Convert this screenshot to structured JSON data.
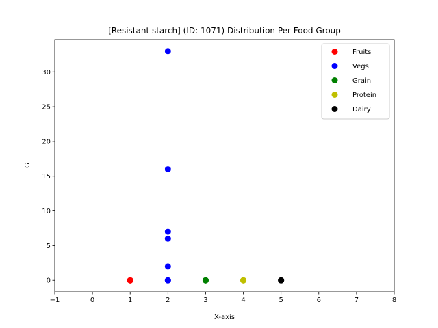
{
  "chart_data": {
    "type": "scatter",
    "title": "[Resistant starch] (ID: 1071) Distribution Per Food Group",
    "xlabel": "X-axis",
    "ylabel": "G",
    "xlim": [
      -1,
      8
    ],
    "ylim": [
      -1.65,
      34.65
    ],
    "xticks": [
      -1,
      0,
      1,
      2,
      3,
      4,
      5,
      6,
      7,
      8
    ],
    "yticks": [
      0,
      5,
      10,
      15,
      20,
      25,
      30
    ],
    "grid": false,
    "legend_position": "top-right",
    "series": [
      {
        "name": "Fruits",
        "color": "#ff0000",
        "points": [
          [
            1,
            0
          ],
          [
            1,
            0
          ],
          [
            1,
            0
          ]
        ]
      },
      {
        "name": "Vegs",
        "color": "#0000ff",
        "points": [
          [
            2,
            33
          ],
          [
            2,
            16
          ],
          [
            2,
            7
          ],
          [
            2,
            6
          ],
          [
            2,
            2
          ],
          [
            2,
            0
          ],
          [
            2,
            0
          ]
        ]
      },
      {
        "name": "Grain",
        "color": "#008000",
        "points": [
          [
            3,
            0
          ],
          [
            3,
            0
          ]
        ]
      },
      {
        "name": "Protein",
        "color": "#bfbf00",
        "points": [
          [
            4,
            0
          ],
          [
            4,
            0
          ]
        ]
      },
      {
        "name": "Dairy",
        "color": "#000000",
        "points": [
          [
            5,
            0
          ],
          [
            5,
            0
          ]
        ]
      }
    ]
  }
}
